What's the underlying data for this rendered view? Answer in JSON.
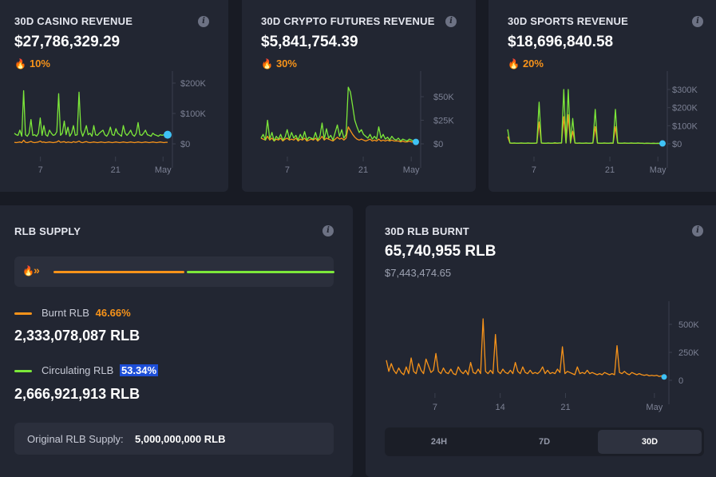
{
  "cards": {
    "casino": {
      "title": "30D CASINO REVENUE",
      "value": "$27,786,329.29",
      "pct": "10%"
    },
    "crypto": {
      "title": "30D CRYPTO FUTURES REVENUE",
      "value": "$5,841,754.39",
      "pct": "30%"
    },
    "sports": {
      "title": "30D SPORTS REVENUE",
      "value": "$18,696,840.58",
      "pct": "20%"
    }
  },
  "supply": {
    "title": "RLB SUPPLY",
    "burnt_fraction": 0.4666,
    "burnt_label": "Burnt RLB",
    "burnt_pct": "46.66%",
    "burnt_value": "2,333,078,087 RLB",
    "circ_label": "Circulating RLB",
    "circ_pct": "53.34%",
    "circ_value": "2,666,921,913 RLB",
    "original_label": "Original RLB Supply:",
    "original_value": "5,000,000,000 RLB"
  },
  "burnt": {
    "title": "30D RLB BURNT",
    "value": "65,740,955 RLB",
    "usd": "$7,443,474.65",
    "ranges": [
      "24H",
      "7D",
      "30D"
    ],
    "active_range": "30D"
  },
  "colors": {
    "green": "#7ce83a",
    "orange": "#f7931a",
    "cyan": "#3fc2f5",
    "badge_blue": "#1d4ed8"
  },
  "icons": {
    "info": "info-icon",
    "flame": "flame-icon",
    "chevrons": "double-chevron-icon"
  },
  "chart_data": [
    {
      "type": "line",
      "chart": "casino",
      "x_ticks": [
        "7",
        "21",
        "May"
      ],
      "y_ticks": [
        "$200K",
        "$100K",
        "$0"
      ],
      "ylim": [
        0,
        200000
      ],
      "series": [
        {
          "color": "green",
          "values": [
            35000,
            30000,
            28000,
            45000,
            25000,
            175000,
            30000,
            25000,
            35000,
            80000,
            28000,
            30000,
            25000,
            35000,
            85000,
            28000,
            60000,
            30000,
            25000,
            45000,
            35000,
            28000,
            30000,
            40000,
            165000,
            28000,
            35000,
            75000,
            30000,
            55000,
            25000,
            35000,
            60000,
            28000,
            30000,
            170000,
            45000,
            25000,
            40000,
            60000,
            30000,
            35000,
            25000,
            60000,
            30000,
            28000,
            35000,
            40000,
            45000,
            30000,
            25000,
            35000,
            55000,
            30000,
            28000,
            50000,
            35000,
            30000,
            25000,
            60000,
            35000,
            28000,
            35000,
            45000,
            30000,
            25000,
            35000,
            70000,
            30000,
            28000,
            35000,
            45000,
            30000,
            28000,
            25000,
            35000,
            30000,
            28000,
            25000,
            30000,
            28000,
            30000,
            32000,
            30000
          ]
        },
        {
          "color": "orange",
          "values": [
            5000,
            4000,
            5000,
            6000,
            4000,
            12000,
            5000,
            4000,
            6000,
            8000,
            5000,
            4000,
            5000,
            6000,
            9000,
            5000,
            6000,
            4000,
            5000,
            6000,
            5000,
            4000,
            5000,
            6000,
            10000,
            5000,
            6000,
            7000,
            4000,
            6000,
            5000,
            4000,
            7000,
            5000,
            6000,
            9000,
            5000,
            4000,
            6000,
            7000,
            5000,
            4000,
            5000,
            6000,
            5000,
            4000,
            5000,
            6000,
            5000,
            4000,
            5000,
            6000,
            5000,
            4000,
            5000,
            6000,
            5000,
            4000,
            5000,
            6000,
            5000,
            4000,
            5000,
            6000,
            5000,
            4000,
            5000,
            6000,
            5000,
            4000,
            5000,
            6000,
            5000,
            4000,
            5000,
            6000,
            5000,
            4000,
            5000,
            6000,
            5000,
            4000,
            5000,
            5000
          ]
        }
      ]
    },
    {
      "type": "line",
      "chart": "crypto",
      "x_ticks": [
        "7",
        "21",
        "May"
      ],
      "y_ticks": [
        "$50K",
        "$25K",
        "$0"
      ],
      "ylim": [
        0,
        50000
      ],
      "series": [
        {
          "color": "green",
          "values": [
            6000,
            10000,
            4000,
            25000,
            5000,
            12000,
            3000,
            8000,
            5000,
            10000,
            4000,
            7000,
            15000,
            5000,
            12000,
            6000,
            9000,
            4000,
            10000,
            5000,
            13000,
            4000,
            7000,
            6000,
            5000,
            12000,
            4000,
            8000,
            22000,
            5000,
            16000,
            6000,
            9000,
            4000,
            12000,
            20000,
            8000,
            15000,
            6000,
            10000,
            60000,
            55000,
            40000,
            25000,
            18000,
            12000,
            15000,
            10000,
            8000,
            6000,
            10000,
            5000,
            8000,
            5000,
            18000,
            6000,
            10000,
            5000,
            7000,
            4000,
            8000,
            5000,
            4000,
            6000,
            3000,
            5000,
            4000,
            3000,
            5000,
            4000,
            3000,
            2000
          ]
        },
        {
          "color": "orange",
          "values": [
            6000,
            5000,
            4000,
            8000,
            4000,
            6000,
            3000,
            5000,
            4000,
            6000,
            3000,
            5000,
            6000,
            4000,
            5000,
            4000,
            6000,
            3000,
            5000,
            4000,
            6000,
            3000,
            4000,
            5000,
            4000,
            6000,
            3000,
            5000,
            8000,
            4000,
            6000,
            5000,
            4000,
            3000,
            5000,
            7000,
            5000,
            6000,
            4000,
            6000,
            18000,
            14000,
            10000,
            7000,
            5000,
            4000,
            5000,
            4000,
            3000,
            4000,
            5000,
            3000,
            4000,
            3000,
            5000,
            3000,
            4000,
            3000,
            4000,
            3000,
            4000,
            3000,
            3000,
            3000,
            2000,
            3000,
            2000,
            2000,
            3000,
            2000,
            2000,
            2000
          ]
        }
      ]
    },
    {
      "type": "line",
      "chart": "sports",
      "x_ticks": [
        "7",
        "21",
        "May"
      ],
      "y_ticks": [
        "$300K",
        "$200K",
        "$100K",
        "$0"
      ],
      "ylim": [
        0,
        300000
      ],
      "series": [
        {
          "color": "green",
          "values": [
            80000,
            5000,
            4000,
            5000,
            3000,
            4000,
            5000,
            4000,
            3000,
            5000,
            4000,
            3000,
            4000,
            5000,
            230000,
            5000,
            4000,
            3000,
            5000,
            4000,
            3000,
            6000,
            4000,
            5000,
            5000,
            300000,
            5000,
            300000,
            6000,
            140000,
            5000,
            4000,
            5000,
            3000,
            4000,
            5000,
            3000,
            4000,
            5000,
            190000,
            5000,
            4000,
            3000,
            5000,
            4000,
            3000,
            5000,
            4000,
            190000,
            5000,
            4000,
            3000,
            5000,
            4000,
            3000,
            5000,
            4000,
            3000,
            5000,
            4000,
            3000,
            2000,
            4000,
            3000,
            2000,
            3000,
            2000,
            3000,
            2000,
            2000
          ]
        },
        {
          "color": "orange",
          "values": [
            40000,
            4000,
            3000,
            4000,
            3000,
            3000,
            4000,
            3000,
            3000,
            4000,
            3000,
            3000,
            3000,
            4000,
            120000,
            4000,
            3000,
            3000,
            4000,
            3000,
            3000,
            4000,
            3000,
            4000,
            4000,
            150000,
            4000,
            160000,
            4000,
            70000,
            4000,
            3000,
            4000,
            3000,
            3000,
            4000,
            3000,
            3000,
            4000,
            95000,
            4000,
            3000,
            3000,
            4000,
            3000,
            3000,
            4000,
            3000,
            95000,
            4000,
            3000,
            3000,
            4000,
            3000,
            3000,
            4000,
            3000,
            3000,
            4000,
            3000,
            3000,
            2000,
            3000,
            2000,
            2000,
            3000,
            2000,
            2000,
            2000,
            2000
          ]
        }
      ]
    },
    {
      "type": "line",
      "chart": "burnt",
      "x_ticks": [
        "7",
        "14",
        "21",
        "May"
      ],
      "y_ticks": [
        "500K",
        "250K",
        "0"
      ],
      "ylim": [
        0,
        600000
      ],
      "series": [
        {
          "color": "orange",
          "values": [
            180000,
            80000,
            150000,
            90000,
            60000,
            110000,
            70000,
            50000,
            120000,
            60000,
            200000,
            80000,
            60000,
            150000,
            90000,
            60000,
            190000,
            130000,
            70000,
            90000,
            240000,
            80000,
            60000,
            110000,
            70000,
            60000,
            100000,
            60000,
            50000,
            120000,
            80000,
            60000,
            90000,
            50000,
            160000,
            70000,
            60000,
            100000,
            60000,
            550000,
            80000,
            60000,
            90000,
            60000,
            410000,
            80000,
            60000,
            100000,
            70000,
            60000,
            90000,
            60000,
            160000,
            80000,
            60000,
            120000,
            70000,
            60000,
            90000,
            60000,
            70000,
            60000,
            80000,
            120000,
            60000,
            90000,
            60000,
            70000,
            60000,
            100000,
            70000,
            300000,
            60000,
            80000,
            70000,
            60000,
            50000,
            120000,
            60000,
            70000,
            60000,
            90000,
            60000,
            70000,
            60000,
            50000,
            60000,
            50000,
            70000,
            60000,
            50000,
            60000,
            50000,
            310000,
            70000,
            60000,
            80000,
            60000,
            50000,
            70000,
            60000,
            50000,
            60000,
            50000,
            45000,
            50000,
            40000,
            45000,
            40000,
            45000,
            35000,
            40000,
            30000
          ]
        }
      ]
    }
  ]
}
